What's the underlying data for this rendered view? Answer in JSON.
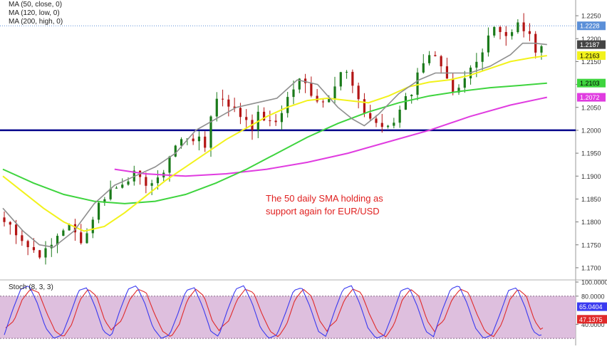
{
  "indicator_labels": [
    "MA (50, close, 0)",
    "MA (120, low, 0)",
    "MA (200, high, 0)"
  ],
  "annotation_line1": "The 50 daily SMA holding as",
  "annotation_line2": "support again for EUR/USD",
  "stoch_label": "Stoch (8, 3, 3)",
  "colors": {
    "background": "#ffffff",
    "bull": "#1a7a1a",
    "bear": "#b31414",
    "ma_fast": "#8f8f8f",
    "ma50": "#f2f21c",
    "ma120": "#3ed43e",
    "ma200": "#e03ce0",
    "support": "#00008b",
    "stoch_bg": "#d8b4d8",
    "stoch_k": "#3a3af0",
    "stoch_d": "#e02a2a"
  },
  "chart_data": {
    "type": "candlestick",
    "symbol_description": "EUR/USD daily",
    "price_axis": {
      "ylim": [
        1.1675,
        1.2275
      ],
      "ticks": [
        "1.1700",
        "1.1750",
        "1.1800",
        "1.1850",
        "1.1900",
        "1.1950",
        "1.2000",
        "1.2050",
        "1.2100",
        "1.2150",
        "1.2200",
        "1.2250"
      ]
    },
    "stoch_axis": {
      "ylim": [
        10,
        100
      ],
      "ticks": [
        "100.0000",
        "80.0000",
        "40.0000"
      ]
    },
    "price_tags": [
      {
        "value": "1.2228",
        "bg": "#5b8fd8",
        "fg": "#ffffff",
        "price": 1.2228
      },
      {
        "value": "1.2187",
        "bg": "#444444",
        "fg": "#ffffff",
        "price": 1.2187
      },
      {
        "value": "1.2163",
        "bg": "#f2f21c",
        "fg": "#000000",
        "price": 1.2163
      },
      {
        "value": "1.2103",
        "bg": "#3ed43e",
        "fg": "#000000",
        "price": 1.2103
      },
      {
        "value": "1.2072",
        "bg": "#e03ce0",
        "fg": "#ffffff",
        "price": 1.2072
      }
    ],
    "stoch_tags": [
      {
        "value": "65.0404",
        "bg": "#3a3af0",
        "fg": "#ffffff",
        "level": 65.04
      },
      {
        "value": "47.1375",
        "bg": "#e02a2a",
        "fg": "#ffffff",
        "level": 47.14
      }
    ],
    "support_level": 1.2,
    "last_price_line": 1.2228,
    "candle_path": [
      1.18,
      1.179,
      1.177,
      1.1745,
      1.1735,
      1.173,
      1.175,
      1.1785,
      1.179,
      1.177,
      1.176,
      1.181,
      1.1845,
      1.187,
      1.1875,
      1.1895,
      1.1905,
      1.1885,
      1.189,
      1.188,
      1.192,
      1.196,
      1.1975,
      1.199,
      1.198,
      1.196,
      1.206,
      1.2075,
      1.206,
      1.2035,
      1.203,
      1.201,
      1.204,
      1.201,
      1.202,
      1.206,
      1.209,
      1.211,
      1.209,
      1.207,
      1.206,
      1.21,
      1.213,
      1.212,
      1.206,
      1.204,
      1.202,
      1.201,
      1.2,
      1.203,
      1.208,
      1.2085,
      1.215,
      1.217,
      1.215,
      1.211,
      1.207,
      1.209,
      1.213,
      1.215,
      1.22,
      1.223,
      1.222,
      1.22,
      1.223,
      1.222,
      1.218,
      1.2187
    ],
    "candle_count": 120,
    "ma_fast": [
      [
        0,
        1.183
      ],
      [
        10,
        1.178
      ],
      [
        18,
        1.175
      ],
      [
        25,
        1.1745
      ],
      [
        35,
        1.178
      ],
      [
        45,
        1.184
      ],
      [
        55,
        1.188
      ],
      [
        65,
        1.19
      ],
      [
        75,
        1.192
      ],
      [
        85,
        1.195
      ],
      [
        95,
        1.2
      ],
      [
        105,
        1.2025
      ],
      [
        115,
        1.205
      ],
      [
        125,
        1.206
      ],
      [
        135,
        1.207
      ],
      [
        145,
        1.211
      ],
      [
        155,
        1.21
      ],
      [
        165,
        1.205
      ],
      [
        172,
        1.2025
      ],
      [
        178,
        1.201
      ],
      [
        185,
        1.2035
      ],
      [
        195,
        1.208
      ],
      [
        205,
        1.211
      ],
      [
        213,
        1.2125
      ],
      [
        220,
        1.2125
      ],
      [
        230,
        1.2125
      ],
      [
        240,
        1.214
      ],
      [
        250,
        1.2165
      ],
      [
        256,
        1.219
      ],
      [
        262,
        1.219
      ],
      [
        268,
        1.2187
      ]
    ],
    "ma50": [
      [
        0,
        1.19
      ],
      [
        10,
        1.1865
      ],
      [
        20,
        1.183
      ],
      [
        30,
        1.18
      ],
      [
        40,
        1.178
      ],
      [
        50,
        1.179
      ],
      [
        60,
        1.182
      ],
      [
        70,
        1.1855
      ],
      [
        80,
        1.189
      ],
      [
        90,
        1.192
      ],
      [
        100,
        1.195
      ],
      [
        110,
        1.198
      ],
      [
        120,
        1.2005
      ],
      [
        130,
        1.203
      ],
      [
        140,
        1.205
      ],
      [
        150,
        1.2065
      ],
      [
        160,
        1.207
      ],
      [
        170,
        1.2065
      ],
      [
        180,
        1.206
      ],
      [
        190,
        1.2075
      ],
      [
        200,
        1.2095
      ],
      [
        210,
        1.2105
      ],
      [
        220,
        1.211
      ],
      [
        230,
        1.212
      ],
      [
        240,
        1.2135
      ],
      [
        250,
        1.215
      ],
      [
        260,
        1.2158
      ],
      [
        268,
        1.2163
      ]
    ],
    "ma120": [
      [
        0,
        1.1915
      ],
      [
        15,
        1.1885
      ],
      [
        30,
        1.186
      ],
      [
        45,
        1.1845
      ],
      [
        60,
        1.184
      ],
      [
        75,
        1.1845
      ],
      [
        90,
        1.186
      ],
      [
        105,
        1.1885
      ],
      [
        120,
        1.1915
      ],
      [
        135,
        1.195
      ],
      [
        150,
        1.1985
      ],
      [
        165,
        1.2015
      ],
      [
        180,
        1.204
      ],
      [
        195,
        1.206
      ],
      [
        210,
        1.2075
      ],
      [
        225,
        1.2085
      ],
      [
        240,
        1.2093
      ],
      [
        255,
        1.2098
      ],
      [
        268,
        1.2103
      ]
    ],
    "ma200": [
      [
        55,
        1.1915
      ],
      [
        70,
        1.1905
      ],
      [
        90,
        1.19
      ],
      [
        110,
        1.1905
      ],
      [
        130,
        1.1915
      ],
      [
        150,
        1.193
      ],
      [
        170,
        1.195
      ],
      [
        190,
        1.1975
      ],
      [
        210,
        1.2
      ],
      [
        230,
        1.203
      ],
      [
        250,
        1.2055
      ],
      [
        268,
        1.2072
      ]
    ],
    "stoch_k_cycle": [
      25,
      60,
      90,
      95,
      70,
      35,
      20,
      25,
      55,
      88,
      92,
      65,
      30,
      22
    ],
    "stoch_d_cycle": [
      35,
      45,
      75,
      90,
      85,
      55,
      30,
      22,
      40,
      75,
      90,
      80,
      45,
      28
    ]
  }
}
